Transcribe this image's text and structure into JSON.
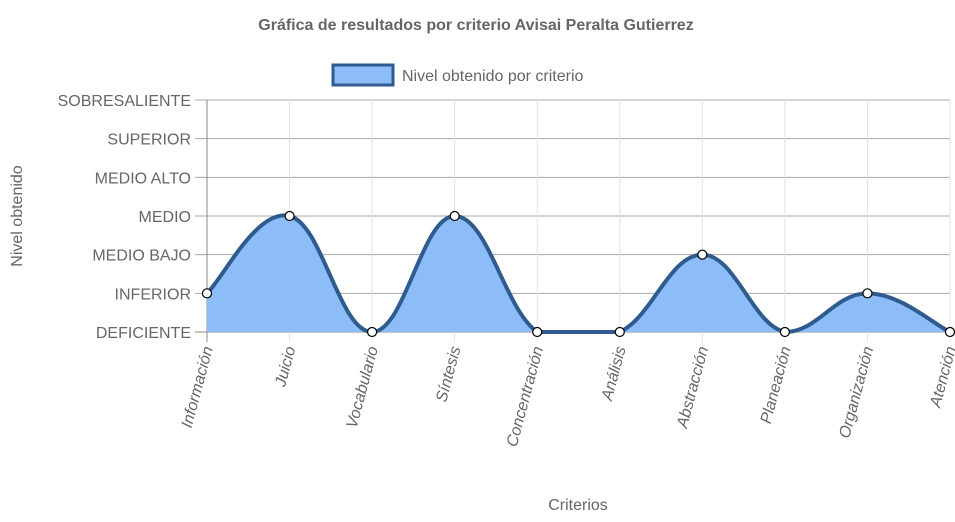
{
  "chart_data": {
    "type": "area",
    "title": "Gráfica de resultados por criterio Avisai Peralta Gutierrez",
    "xlabel": "Criterios",
    "ylabel": "Nivel obtenido",
    "categories": [
      "Información",
      "Juicio",
      "Vocabulario",
      "Síntesis",
      "Concentración",
      "Análisis",
      "Abstracción",
      "Planeación",
      "Organización",
      "Atención"
    ],
    "y_levels": [
      "DEFICIENTE",
      "INFERIOR",
      "MEDIO BAJO",
      "MEDIO",
      "MEDIO ALTO",
      "SUPERIOR",
      "SOBRESALIENTE"
    ],
    "ylim": [
      0,
      6
    ],
    "grid": true,
    "legend_position": "top",
    "series": [
      {
        "name": "Nivel obtenido por criterio",
        "values": [
          1,
          3,
          0,
          3,
          0,
          0,
          2,
          0,
          1,
          0
        ],
        "fill_color": "#8dbdf8",
        "line_color": "#2f5b8f"
      }
    ]
  }
}
